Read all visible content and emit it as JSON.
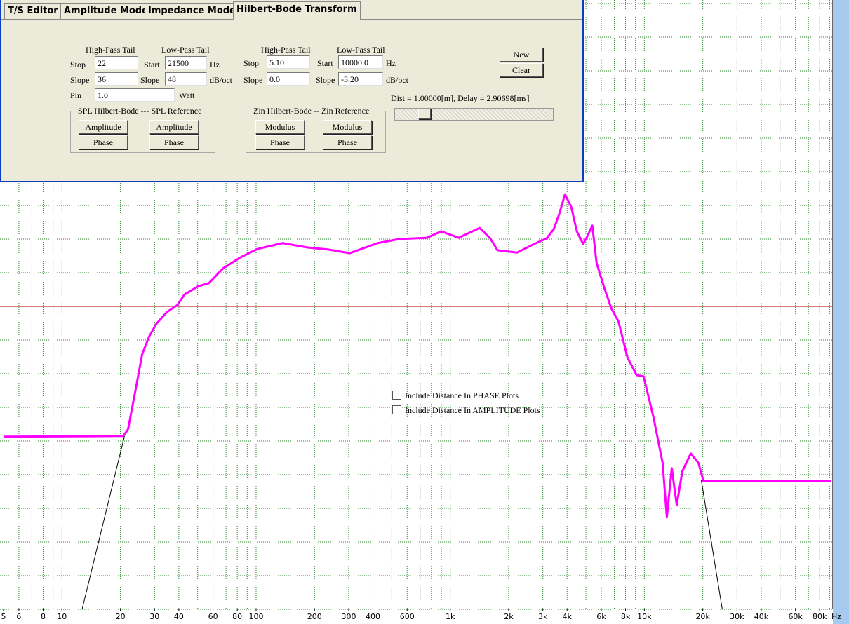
{
  "panel": {
    "tabs": [
      "T/S Editor",
      "Amplitude Model",
      "Impedance Model",
      "Hilbert-Bode Transform"
    ],
    "texts": [
      "High-Pass Tail",
      "Low-Pass Tail",
      "Stop",
      "Start",
      "Hz",
      "Slope",
      "Slope",
      "dB/oct",
      "High-Pass Tail",
      "Low-Pass Tail",
      "Stop",
      "Start",
      "Hz",
      "Slope",
      "Slope",
      "dB/oct",
      "Pin",
      "Watt"
    ],
    "fields": [
      "22",
      "21500",
      "36",
      "48",
      "5.10",
      "10000.0",
      "0.0",
      "-3.20",
      "1.0"
    ],
    "groups": [
      "SPL Hilbert-Bode --- SPL Reference",
      "Zin Hilbert-Bode -- Zin Reference"
    ],
    "buttons": [
      "Amplitude",
      "Amplitude",
      "Phase",
      "Phase",
      "Modulus",
      "Modulus",
      "Phase",
      "Phase",
      "New",
      "Clear"
    ],
    "status": "Dist = 1.00000[m], Delay = 2.90698[ms]",
    "checks": [
      "Include Distance In PHASE Plots",
      "Include Distance In AMPLITUDE Plots"
    ]
  },
  "chart_data": {
    "type": "line",
    "x_label": "Hz",
    "xscale": "log",
    "grid": true,
    "xlim": [
      5,
      92000
    ],
    "ylim": [
      0,
      18
    ],
    "xticks": [
      5,
      6,
      8,
      10,
      20,
      30,
      40,
      60,
      80,
      100,
      200,
      300,
      400,
      600,
      {
        "value": 1000,
        "label": "1k"
      },
      {
        "value": 2000,
        "label": "2k"
      },
      {
        "value": 3000,
        "label": "3k"
      },
      {
        "value": 4000,
        "label": "4k"
      },
      {
        "value": 6000,
        "label": "6k"
      },
      {
        "value": 8000,
        "label": "8k"
      },
      {
        "value": 10000,
        "label": "10k"
      },
      {
        "value": 20000,
        "label": "20k"
      },
      {
        "value": 30000,
        "label": "30k"
      },
      {
        "value": 40000,
        "label": "40k"
      },
      {
        "value": 60000,
        "label": "60k"
      },
      {
        "value": 80000,
        "label": "80k"
      }
    ],
    "series": [
      {
        "color": "#ff00ff",
        "x": [
          5,
          20.7,
          21.9,
          23.8,
          25.9,
          28.1,
          30.6,
          34.7,
          39.3,
          42.7,
          50.4,
          57.1,
          67.6,
          83.2,
          102,
          137,
          184,
          236,
          303,
          423,
          544,
          759,
          897,
          1105,
          1419,
          1609,
          1750,
          2210,
          2655,
          3135,
          3410,
          3645,
          3900,
          4200,
          4490,
          4840,
          5130,
          5395,
          5675,
          6210,
          6760,
          7350,
          8190,
          9120,
          9910,
          11140,
          12420,
          13060,
          13840,
          14680,
          15690,
          17340,
          19000,
          20150,
          92000
        ],
        "values": [
          5.13,
          5.15,
          5.35,
          6.44,
          7.58,
          8.1,
          8.48,
          8.83,
          9.04,
          9.35,
          9.6,
          9.69,
          10.13,
          10.46,
          10.71,
          10.88,
          10.75,
          10.69,
          10.58,
          10.88,
          11.0,
          11.04,
          11.23,
          11.04,
          11.33,
          11.02,
          10.67,
          10.6,
          10.83,
          11.02,
          11.29,
          11.75,
          12.33,
          11.96,
          11.23,
          10.85,
          11.13,
          11.4,
          10.29,
          9.56,
          8.94,
          8.56,
          7.48,
          6.96,
          6.92,
          5.71,
          4.35,
          2.73,
          4.19,
          3.1,
          4.1,
          4.63,
          4.35,
          3.81,
          3.81
        ]
      },
      {
        "color": "#000000",
        "x": [
          12.7,
          21.0,
          null,
          19630,
          25200
        ],
        "values": [
          0,
          5.15,
          null,
          3.85,
          0
        ]
      }
    ]
  }
}
